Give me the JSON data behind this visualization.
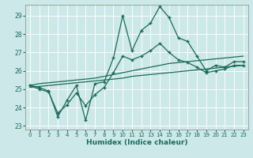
{
  "xlabel": "Humidex (Indice chaleur)",
  "background_color": "#cce8e8",
  "line_color": "#1a6b5a",
  "grid_color": "#b8d8d8",
  "xlim": [
    -0.5,
    23.5
  ],
  "ylim": [
    22.8,
    29.6
  ],
  "yticks": [
    23,
    24,
    25,
    26,
    27,
    28,
    29
  ],
  "xticks": [
    0,
    1,
    2,
    3,
    4,
    5,
    6,
    7,
    8,
    9,
    10,
    11,
    12,
    13,
    14,
    15,
    16,
    17,
    18,
    19,
    20,
    21,
    22,
    23
  ],
  "x": [
    0,
    1,
    2,
    3,
    4,
    5,
    6,
    7,
    8,
    9,
    10,
    11,
    12,
    13,
    14,
    15,
    16,
    17,
    18,
    19,
    20,
    21,
    22,
    23
  ],
  "y_jagged1": [
    25.2,
    25.1,
    24.9,
    23.5,
    24.4,
    25.2,
    23.3,
    25.3,
    25.4,
    26.7,
    29.0,
    27.1,
    28.2,
    28.6,
    29.5,
    28.9,
    27.8,
    27.6,
    26.8,
    26.0,
    26.3,
    26.2,
    26.5,
    26.5
  ],
  "y_jagged2": [
    25.2,
    25.0,
    24.85,
    23.7,
    24.15,
    24.8,
    24.1,
    24.7,
    25.1,
    25.9,
    26.8,
    26.6,
    26.8,
    27.1,
    27.5,
    27.0,
    26.6,
    26.45,
    26.2,
    25.9,
    26.0,
    26.1,
    26.3,
    26.3
  ],
  "y_smooth1": [
    25.2,
    25.3,
    25.35,
    25.4,
    25.45,
    25.5,
    25.55,
    25.6,
    25.7,
    25.8,
    25.9,
    26.0,
    26.1,
    26.2,
    26.3,
    26.4,
    26.45,
    26.5,
    26.55,
    26.6,
    26.65,
    26.7,
    26.75,
    26.8
  ],
  "y_smooth2": [
    25.1,
    25.15,
    25.2,
    25.25,
    25.3,
    25.35,
    25.4,
    25.45,
    25.5,
    25.55,
    25.6,
    25.7,
    25.75,
    25.8,
    25.85,
    25.9,
    25.95,
    26.0,
    26.05,
    26.1,
    26.15,
    26.2,
    26.25,
    26.3
  ]
}
